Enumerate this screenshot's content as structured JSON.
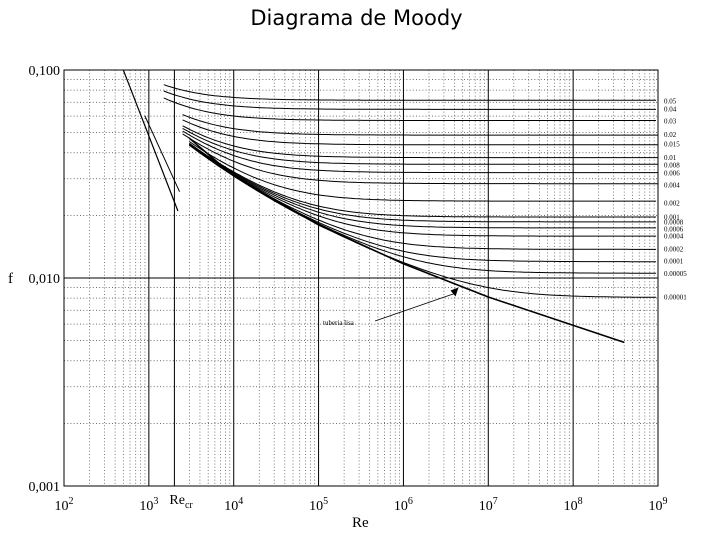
{
  "chart_data": {
    "type": "line",
    "title": "Diagrama de Moody",
    "xlabel": "Re",
    "ylabel": "f",
    "x_scale": "log",
    "y_scale": "log",
    "xlim": [
      100,
      1000000000
    ],
    "ylim": [
      0.001,
      0.1
    ],
    "x_ticks": [
      {
        "base": "10",
        "exp": "2"
      },
      {
        "base": "10",
        "exp": "3"
      },
      {
        "base": "10",
        "exp": "4"
      },
      {
        "base": "10",
        "exp": "5"
      },
      {
        "base": "10",
        "exp": "6"
      },
      {
        "base": "10",
        "exp": "7"
      },
      {
        "base": "10",
        "exp": "8"
      },
      {
        "base": "10",
        "exp": "9"
      }
    ],
    "y_ticks": [
      "0,100",
      "0,010",
      "0,001"
    ],
    "recr_label": {
      "text": "Re",
      "sub": "cr"
    },
    "recr_value": 2000,
    "grid": true,
    "laminar": {
      "x": [
        500,
        2200
      ],
      "y": [
        0.1,
        0.021
      ]
    },
    "smooth_pipe": {
      "label": "tuberia lisa",
      "x": [
        3000,
        10000,
        100000,
        1000000,
        10000000,
        400000000
      ],
      "y": [
        0.047,
        0.031,
        0.018,
        0.0117,
        0.0081,
        0.0049
      ]
    },
    "roughness_curves": [
      {
        "label": "0.05",
        "f_inf": 0.071
      },
      {
        "label": "0.04",
        "f_inf": 0.065
      },
      {
        "label": "0.03",
        "f_inf": 0.057
      },
      {
        "label": "0.02",
        "f_inf": 0.049
      },
      {
        "label": "0.015",
        "f_inf": 0.044
      },
      {
        "label": "0.01",
        "f_inf": 0.038
      },
      {
        "label": "0.008",
        "f_inf": 0.035
      },
      {
        "label": "0.006",
        "f_inf": 0.032
      },
      {
        "label": "0.004",
        "f_inf": 0.028
      },
      {
        "label": "0.002",
        "f_inf": 0.023
      },
      {
        "label": "0.001",
        "f_inf": 0.0196
      },
      {
        "label": "0.0008",
        "f_inf": 0.0186
      },
      {
        "label": "0.0006",
        "f_inf": 0.0172
      },
      {
        "label": "0.0004",
        "f_inf": 0.0159
      },
      {
        "label": "0.0002",
        "f_inf": 0.0138
      },
      {
        "label": "0.0001",
        "f_inf": 0.0121
      },
      {
        "label": "0.00005",
        "f_inf": 0.0105
      },
      {
        "label": "0.00001",
        "f_inf": 0.0081
      }
    ]
  }
}
